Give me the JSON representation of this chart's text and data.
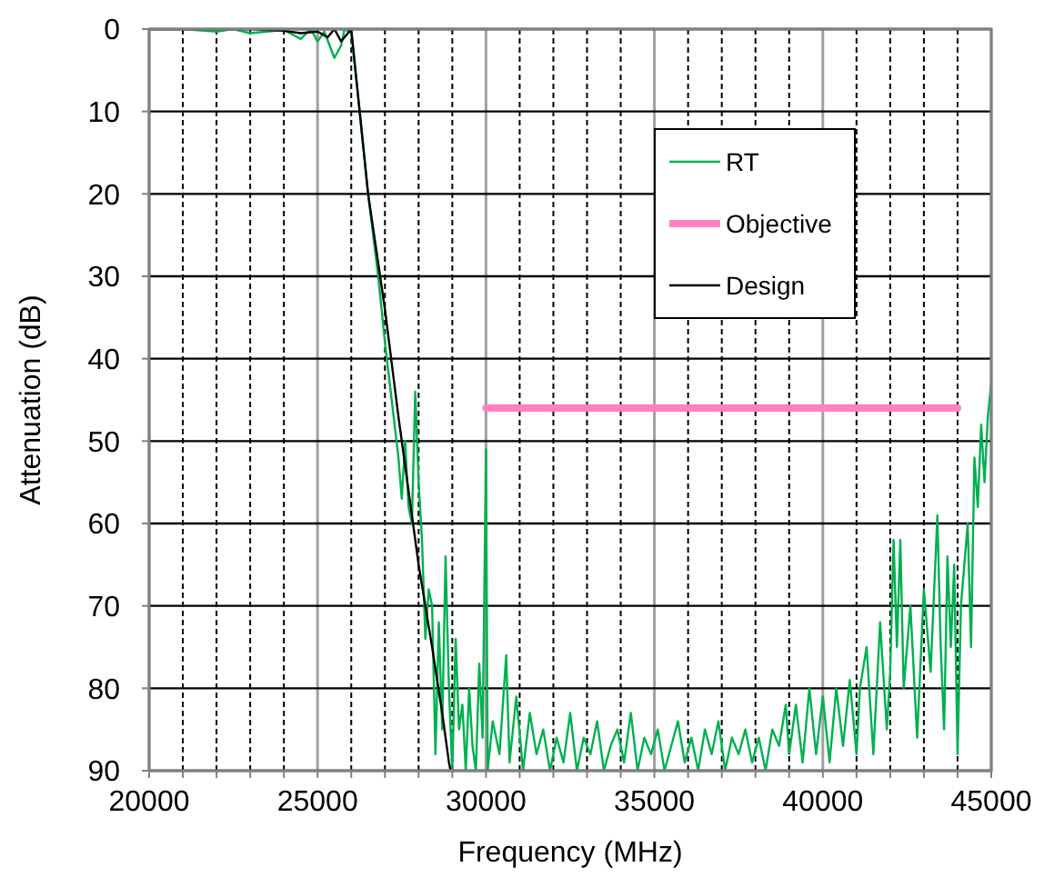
{
  "chart_data": {
    "type": "line",
    "xlabel": "Frequency (MHz)",
    "ylabel": "Attenuation (dB)",
    "xlim": [
      20000,
      45000
    ],
    "xticks": [
      20000,
      {
        "value": 21000,
        "label": null
      },
      {
        "value": 22000,
        "label": null
      },
      {
        "value": 23000,
        "label": null
      },
      {
        "value": 24000,
        "label": null
      },
      25000,
      {
        "value": 26000,
        "label": null
      },
      {
        "value": 27000,
        "label": null
      },
      {
        "value": 28000,
        "label": null
      },
      {
        "value": 29000,
        "label": null
      },
      30000,
      {
        "value": 31000,
        "label": null
      },
      {
        "value": 32000,
        "label": null
      },
      {
        "value": 33000,
        "label": null
      },
      {
        "value": 34000,
        "label": null
      },
      35000,
      {
        "value": 36000,
        "label": null
      },
      {
        "value": 37000,
        "label": null
      },
      {
        "value": 38000,
        "label": null
      },
      {
        "value": 39000,
        "label": null
      },
      40000,
      {
        "value": 41000,
        "label": null
      },
      {
        "value": 42000,
        "label": null
      },
      {
        "value": 43000,
        "label": null
      },
      {
        "value": 44000,
        "label": null
      },
      45000
    ],
    "ylim": [
      90,
      0
    ],
    "yticks": [
      0,
      10,
      20,
      30,
      40,
      50,
      60,
      70,
      80,
      90
    ],
    "grid": true,
    "legend": "top right",
    "marker": "none",
    "line_style": "solid",
    "series": [
      {
        "name": "RT",
        "color": "#00b050",
        "x": [
          20000,
          21000,
          22000,
          22500,
          23000,
          23500,
          24000,
          24500,
          24800,
          25000,
          25200,
          25500,
          25700,
          25800,
          26000,
          26200,
          26500,
          26800,
          27000,
          27200,
          27400,
          27500,
          27600,
          27700,
          27800,
          27900,
          28000,
          28100,
          28200,
          28300,
          28400,
          28500,
          28600,
          28700,
          28800,
          28900,
          29000,
          29100,
          29200,
          29300,
          29400,
          29500,
          29600,
          29700,
          29800,
          29900,
          30000,
          30050,
          30200,
          30400,
          30600,
          30700,
          30900,
          31100,
          31300,
          31500,
          31700,
          31900,
          32100,
          32300,
          32500,
          32700,
          32900,
          33100,
          33300,
          33500,
          33700,
          33900,
          34100,
          34300,
          34500,
          34700,
          34900,
          35100,
          35300,
          35500,
          35700,
          35900,
          36100,
          36300,
          36500,
          36700,
          36900,
          37100,
          37300,
          37500,
          37700,
          37900,
          38100,
          38300,
          38500,
          38700,
          38900,
          39000,
          39200,
          39400,
          39600,
          39800,
          40000,
          40200,
          40400,
          40600,
          40800,
          41000,
          41100,
          41300,
          41500,
          41700,
          41900,
          42000,
          42100,
          42200,
          42300,
          42400,
          42600,
          42800,
          43000,
          43200,
          43400,
          43500,
          43600,
          43700,
          43800,
          43900,
          44000,
          44100,
          44300,
          44400,
          44500,
          44600,
          44700,
          44800,
          44900,
          45000
        ],
        "values": [
          0,
          0,
          0.3,
          0,
          0.5,
          0.3,
          0.1,
          1.2,
          0,
          1.5,
          0.3,
          3.5,
          2,
          0,
          0.5,
          8,
          20,
          30,
          38,
          45,
          52,
          57,
          50,
          58,
          60,
          44,
          55,
          62,
          74,
          68,
          70,
          88,
          72,
          85,
          64,
          80,
          90,
          74,
          85,
          82,
          90,
          80,
          87,
          90,
          77,
          86,
          51,
          90,
          84,
          88,
          76,
          89,
          81,
          90,
          83,
          88,
          85,
          90,
          86,
          89,
          83,
          90,
          86,
          88,
          84,
          90,
          87,
          85,
          89,
          83,
          90,
          86,
          88,
          85,
          90,
          87,
          84,
          89,
          86,
          90,
          85,
          88,
          84,
          90,
          86,
          88,
          85,
          89,
          86,
          90,
          85,
          87,
          82,
          88,
          82,
          89,
          80,
          88,
          81,
          89,
          80,
          87,
          79,
          88,
          80,
          75,
          88,
          72,
          85,
          78,
          62,
          75,
          62,
          80,
          70,
          86,
          68,
          78,
          59,
          75,
          85,
          64,
          75,
          65,
          88,
          70,
          60,
          75,
          52,
          58,
          48,
          55,
          47,
          43
        ]
      },
      {
        "name": "Objective",
        "color": "#ff80c0",
        "x": [
          30000,
          44000
        ],
        "values": [
          46,
          46
        ]
      },
      {
        "name": "Design",
        "color": "#000000",
        "x": [
          20000,
          23000,
          24000,
          24500,
          25000,
          25300,
          25500,
          25700,
          26000,
          26200,
          26500,
          27000,
          27400,
          27800,
          28000,
          28400,
          28700,
          28900,
          28950
        ],
        "values": [
          0,
          0,
          0.2,
          0.5,
          0.3,
          1,
          0,
          1.5,
          0,
          8,
          20,
          34,
          47,
          59,
          65,
          75,
          83,
          89,
          90
        ]
      }
    ]
  }
}
